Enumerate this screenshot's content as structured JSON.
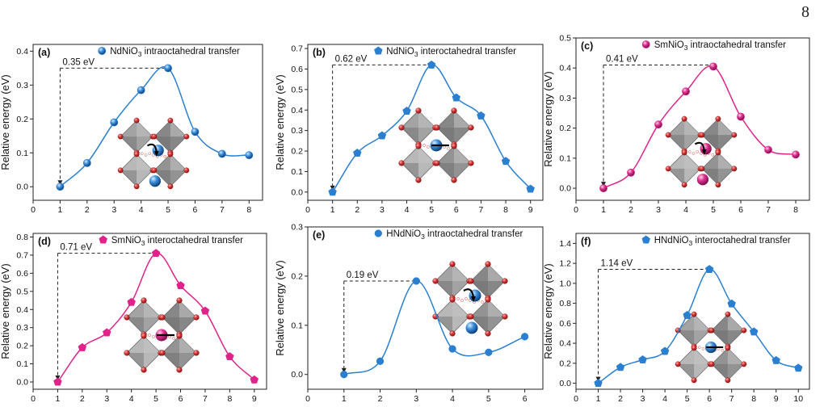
{
  "page_number": "8",
  "colors": {
    "blue": "#2a7fd0",
    "pink": "#e0228a",
    "octahedron_gray": "#8e8e8e",
    "oxygen_red": "#d83030",
    "ion_blue": "#1d5fa8",
    "ion_pink": "#c8177a"
  },
  "inset_icon": "octahedra-structure-icon",
  "chart_data": [
    {
      "type": "line",
      "panel_label": "(a)",
      "legend": {
        "prefix": "NdNiO",
        "subscript": "3",
        "suffix": " intraoctahedral transfer"
      },
      "marker": "sphere",
      "color": "#2a7fd0",
      "ylabel": "Relative energy (eV)",
      "xlim": [
        0,
        8.5
      ],
      "ylim": [
        -0.04,
        0.42
      ],
      "xticks": [
        "0",
        "1",
        "2",
        "3",
        "4",
        "5",
        "6",
        "7",
        "8"
      ],
      "yticks": [
        "0.0",
        "0.1",
        "0.2",
        "0.3",
        "0.4"
      ],
      "x": [
        1,
        2,
        3,
        4,
        5,
        6,
        7,
        8
      ],
      "y": [
        0.0,
        0.07,
        0.19,
        0.285,
        0.35,
        0.162,
        0.097,
        0.093
      ],
      "annotation": {
        "text": "0.35 eV",
        "x": 1,
        "y": 0.35,
        "peak_x": 5
      }
    },
    {
      "type": "line",
      "panel_label": "(b)",
      "legend": {
        "prefix": "NdNiO",
        "subscript": "3",
        "suffix": " interoctahedral transfer"
      },
      "marker": "pentagon",
      "color": "#2a7fd0",
      "ylabel": "Relative energy (eV)",
      "xlim": [
        0,
        9.5
      ],
      "ylim": [
        -0.04,
        0.72
      ],
      "xticks": [
        "0",
        "1",
        "2",
        "3",
        "4",
        "5",
        "6",
        "7",
        "8",
        "9"
      ],
      "yticks": [
        "0.0",
        "0.1",
        "0.2",
        "0.3",
        "0.4",
        "0.5",
        "0.6",
        "0.7"
      ],
      "x": [
        1,
        2,
        3,
        4,
        5,
        6,
        7,
        8,
        9
      ],
      "y": [
        0.0,
        0.19,
        0.275,
        0.395,
        0.62,
        0.46,
        0.372,
        0.15,
        0.015
      ],
      "annotation": {
        "text": "0.62 eV",
        "x": 1,
        "y": 0.62,
        "peak_x": 5
      }
    },
    {
      "type": "line",
      "panel_label": "(c)",
      "legend": {
        "prefix": "SmNiO",
        "subscript": "3",
        "suffix": " intraoctahedral transfer"
      },
      "marker": "sphere",
      "color": "#e0228a",
      "ylabel": "Relative energy (eV)",
      "xlim": [
        0,
        8.5
      ],
      "ylim": [
        -0.04,
        0.5
      ],
      "xticks": [
        "0",
        "1",
        "2",
        "3",
        "4",
        "5",
        "6",
        "7",
        "8"
      ],
      "yticks": [
        "0.0",
        "0.1",
        "0.2",
        "0.3",
        "0.4",
        "0.5"
      ],
      "x": [
        1,
        2,
        3,
        4,
        5,
        6,
        7,
        8
      ],
      "y": [
        0.0,
        0.052,
        0.212,
        0.322,
        0.405,
        0.238,
        0.128,
        0.112
      ],
      "annotation": {
        "text": "0.41 eV",
        "x": 1,
        "y": 0.41,
        "peak_x": 5
      }
    },
    {
      "type": "line",
      "panel_label": "(d)",
      "legend": {
        "prefix": "SmNiO",
        "subscript": "3",
        "suffix": " interoctahedral transfer"
      },
      "marker": "pentagon",
      "color": "#e0228a",
      "ylabel": "Relative energy (eV)",
      "xlim": [
        0,
        9.5
      ],
      "ylim": [
        -0.04,
        0.82
      ],
      "xticks": [
        "0",
        "1",
        "2",
        "3",
        "4",
        "5",
        "6",
        "7",
        "8",
        "9"
      ],
      "yticks": [
        "0.0",
        "0.1",
        "0.2",
        "0.3",
        "0.4",
        "0.5",
        "0.6",
        "0.7",
        "0.8"
      ],
      "x": [
        1,
        2,
        3,
        4,
        5,
        6,
        7,
        8,
        9
      ],
      "y": [
        0.0,
        0.19,
        0.272,
        0.44,
        0.71,
        0.532,
        0.392,
        0.14,
        0.012
      ],
      "annotation": {
        "text": "0.71 eV",
        "x": 1,
        "y": 0.71,
        "peak_x": 5
      }
    },
    {
      "type": "line",
      "panel_label": "(e)",
      "legend": {
        "prefix": "HNdNiO",
        "subscript": "3",
        "suffix": " intraoctahedral transfer"
      },
      "marker": "circle",
      "color": "#2a7fd0",
      "ylabel": "Relative energy (eV)",
      "xlim": [
        0,
        6.5
      ],
      "ylim": [
        -0.03,
        0.3
      ],
      "xticks": [
        "0",
        "1",
        "2",
        "3",
        "4",
        "5",
        "6"
      ],
      "yticks": [
        "0.0",
        "0.1",
        "0.2",
        "0.3"
      ],
      "x": [
        1,
        2,
        3,
        4,
        5,
        6
      ],
      "y": [
        0.0,
        0.027,
        0.19,
        0.052,
        0.045,
        0.077
      ],
      "annotation": {
        "text": "0.19 eV",
        "x": 1,
        "y": 0.19,
        "peak_x": 3
      }
    },
    {
      "type": "line",
      "panel_label": "(f)",
      "legend": {
        "prefix": "HNdNiO",
        "subscript": "3",
        "suffix": " interoctahedral transfer"
      },
      "marker": "pentagon",
      "color": "#2a7fd0",
      "ylabel": "Relative energy (eV)",
      "xlim": [
        0,
        10.5
      ],
      "ylim": [
        -0.06,
        1.5
      ],
      "xticks": [
        "0",
        "1",
        "2",
        "3",
        "4",
        "5",
        "6",
        "7",
        "8",
        "9",
        "10"
      ],
      "yticks": [
        "0.0",
        "0.2",
        "0.4",
        "0.6",
        "0.8",
        "1.0",
        "1.2",
        "1.4"
      ],
      "x": [
        1,
        2,
        3,
        4,
        5,
        6,
        7,
        8,
        9,
        10
      ],
      "y": [
        0.0,
        0.16,
        0.235,
        0.32,
        0.68,
        1.14,
        0.795,
        0.515,
        0.228,
        0.152
      ],
      "annotation": {
        "text": "1.14 eV",
        "x": 1,
        "y": 1.14,
        "peak_x": 6
      }
    }
  ]
}
